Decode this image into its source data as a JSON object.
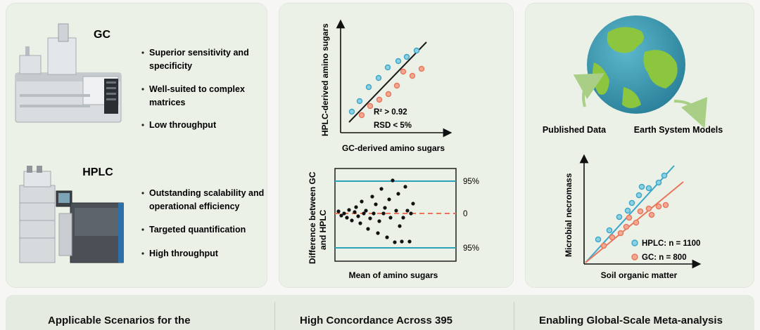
{
  "gc": {
    "title": "GC",
    "bullets": [
      "Superior sensitivity and",
      "specificity",
      "Well-suited to complex",
      "matrices",
      "Low throughput"
    ]
  },
  "hplc": {
    "title": "HPLC",
    "bullets": [
      "Outstanding scalability and",
      "operational efficiency",
      "Targeted quantification",
      "High throughput"
    ]
  },
  "correlation": {
    "y_label": "HPLC-derived amino sugars",
    "x_label": "GC-derived amino sugars",
    "r2": "R² > 0.92",
    "rsd": "RSD < 5%",
    "colors": {
      "hplc": "#3aa6c9",
      "gc": "#e8765a",
      "line": "#1a1a1a"
    }
  },
  "bland_altman": {
    "y_label_line1": "Difference between GC",
    "y_label_line2": "and HPLC",
    "x_label": "Mean of amino sugars",
    "upper_label": "95%",
    "mid_label": "0",
    "lower_label": "95%",
    "colors": {
      "limits": "#2aa3b8",
      "zero": "#e8765a",
      "points": "#111111"
    }
  },
  "global": {
    "published_data": "Published Data",
    "earth_models": "Earth System Models",
    "y_label": "Microbial necromass",
    "x_label": "Soil organic matter",
    "legend_hplc": "HPLC: n = 1100",
    "legend_gc": "GC: n = 800",
    "colors": {
      "ocean": "#3a9bb3",
      "land": "#8cc63f",
      "arrow": "#a9cf86"
    }
  },
  "footer": {
    "col1": "Applicable Scenarios for the",
    "col2": "High Concordance Across 395",
    "col3": "Enabling Global-Scale Meta-analysis"
  }
}
